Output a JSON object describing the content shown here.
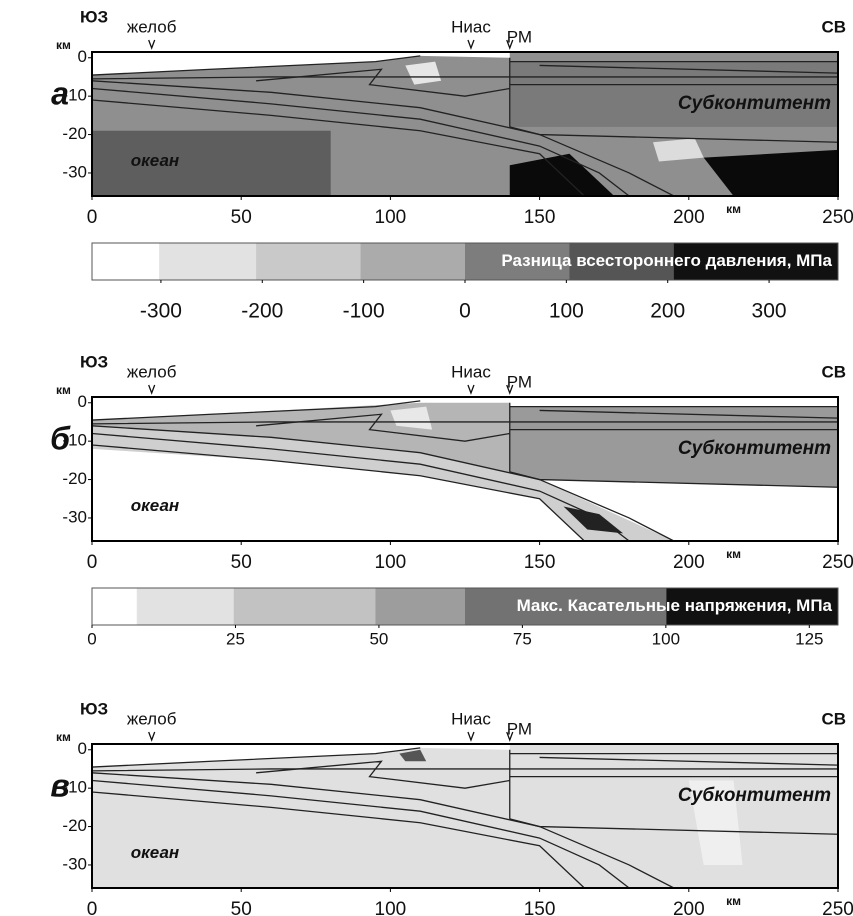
{
  "panels": [
    {
      "label": "а",
      "sw": "ЮЗ",
      "ne": "СВ",
      "y_unit": "км",
      "x_unit": "км",
      "xlim": [
        0,
        250
      ],
      "xticks": [
        0,
        50,
        100,
        150,
        200,
        250
      ],
      "ylim": [
        -36,
        1.5
      ],
      "yticks": [
        0,
        -10,
        -20,
        -30
      ],
      "markers": [
        {
          "label": "желоб",
          "x": 20
        },
        {
          "label": "Ниас",
          "x": 127
        },
        {
          "label": "РМ",
          "x": 140
        }
      ],
      "ocean": "океан",
      "subcontinent": "Субконтитент",
      "colorbar": {
        "title": "Разница всестороннего давления, МПа",
        "lim": [
          -368,
          368
        ],
        "ticks": [
          -300,
          -200,
          -100,
          0,
          100,
          200,
          300
        ]
      }
    },
    {
      "label": "б",
      "sw": "ЮЗ",
      "ne": "СВ",
      "y_unit": "км",
      "x_unit": "км",
      "xlim": [
        0,
        250
      ],
      "xticks": [
        0,
        50,
        100,
        150,
        200,
        250
      ],
      "ylim": [
        -36,
        1.5
      ],
      "yticks": [
        0,
        -10,
        -20,
        -30
      ],
      "markers": [
        {
          "label": "желоб",
          "x": 20
        },
        {
          "label": "Ниас",
          "x": 127
        },
        {
          "label": "РМ",
          "x": 140
        }
      ],
      "ocean": "океан",
      "subcontinent": "Субконтитент",
      "colorbar": {
        "title": "Макс. Касательные напряжения, МПа",
        "lim": [
          0,
          130
        ],
        "ticks": [
          0,
          25,
          50,
          75,
          100,
          125
        ]
      }
    },
    {
      "label": "в",
      "sw": "ЮЗ",
      "ne": "СВ",
      "y_unit": "км",
      "x_unit": "км",
      "xlim": [
        0,
        250
      ],
      "xticks": [
        0,
        50,
        100,
        150,
        200,
        250
      ],
      "ylim": [
        -36,
        1.5
      ],
      "yticks": [
        0,
        -10,
        -20,
        -30
      ],
      "markers": [
        {
          "label": "желоб",
          "x": 20
        },
        {
          "label": "Ниас",
          "x": 127
        },
        {
          "label": "РМ",
          "x": 140
        }
      ],
      "ocean": "океан",
      "subcontinent": "Субконтитент"
    }
  ]
}
